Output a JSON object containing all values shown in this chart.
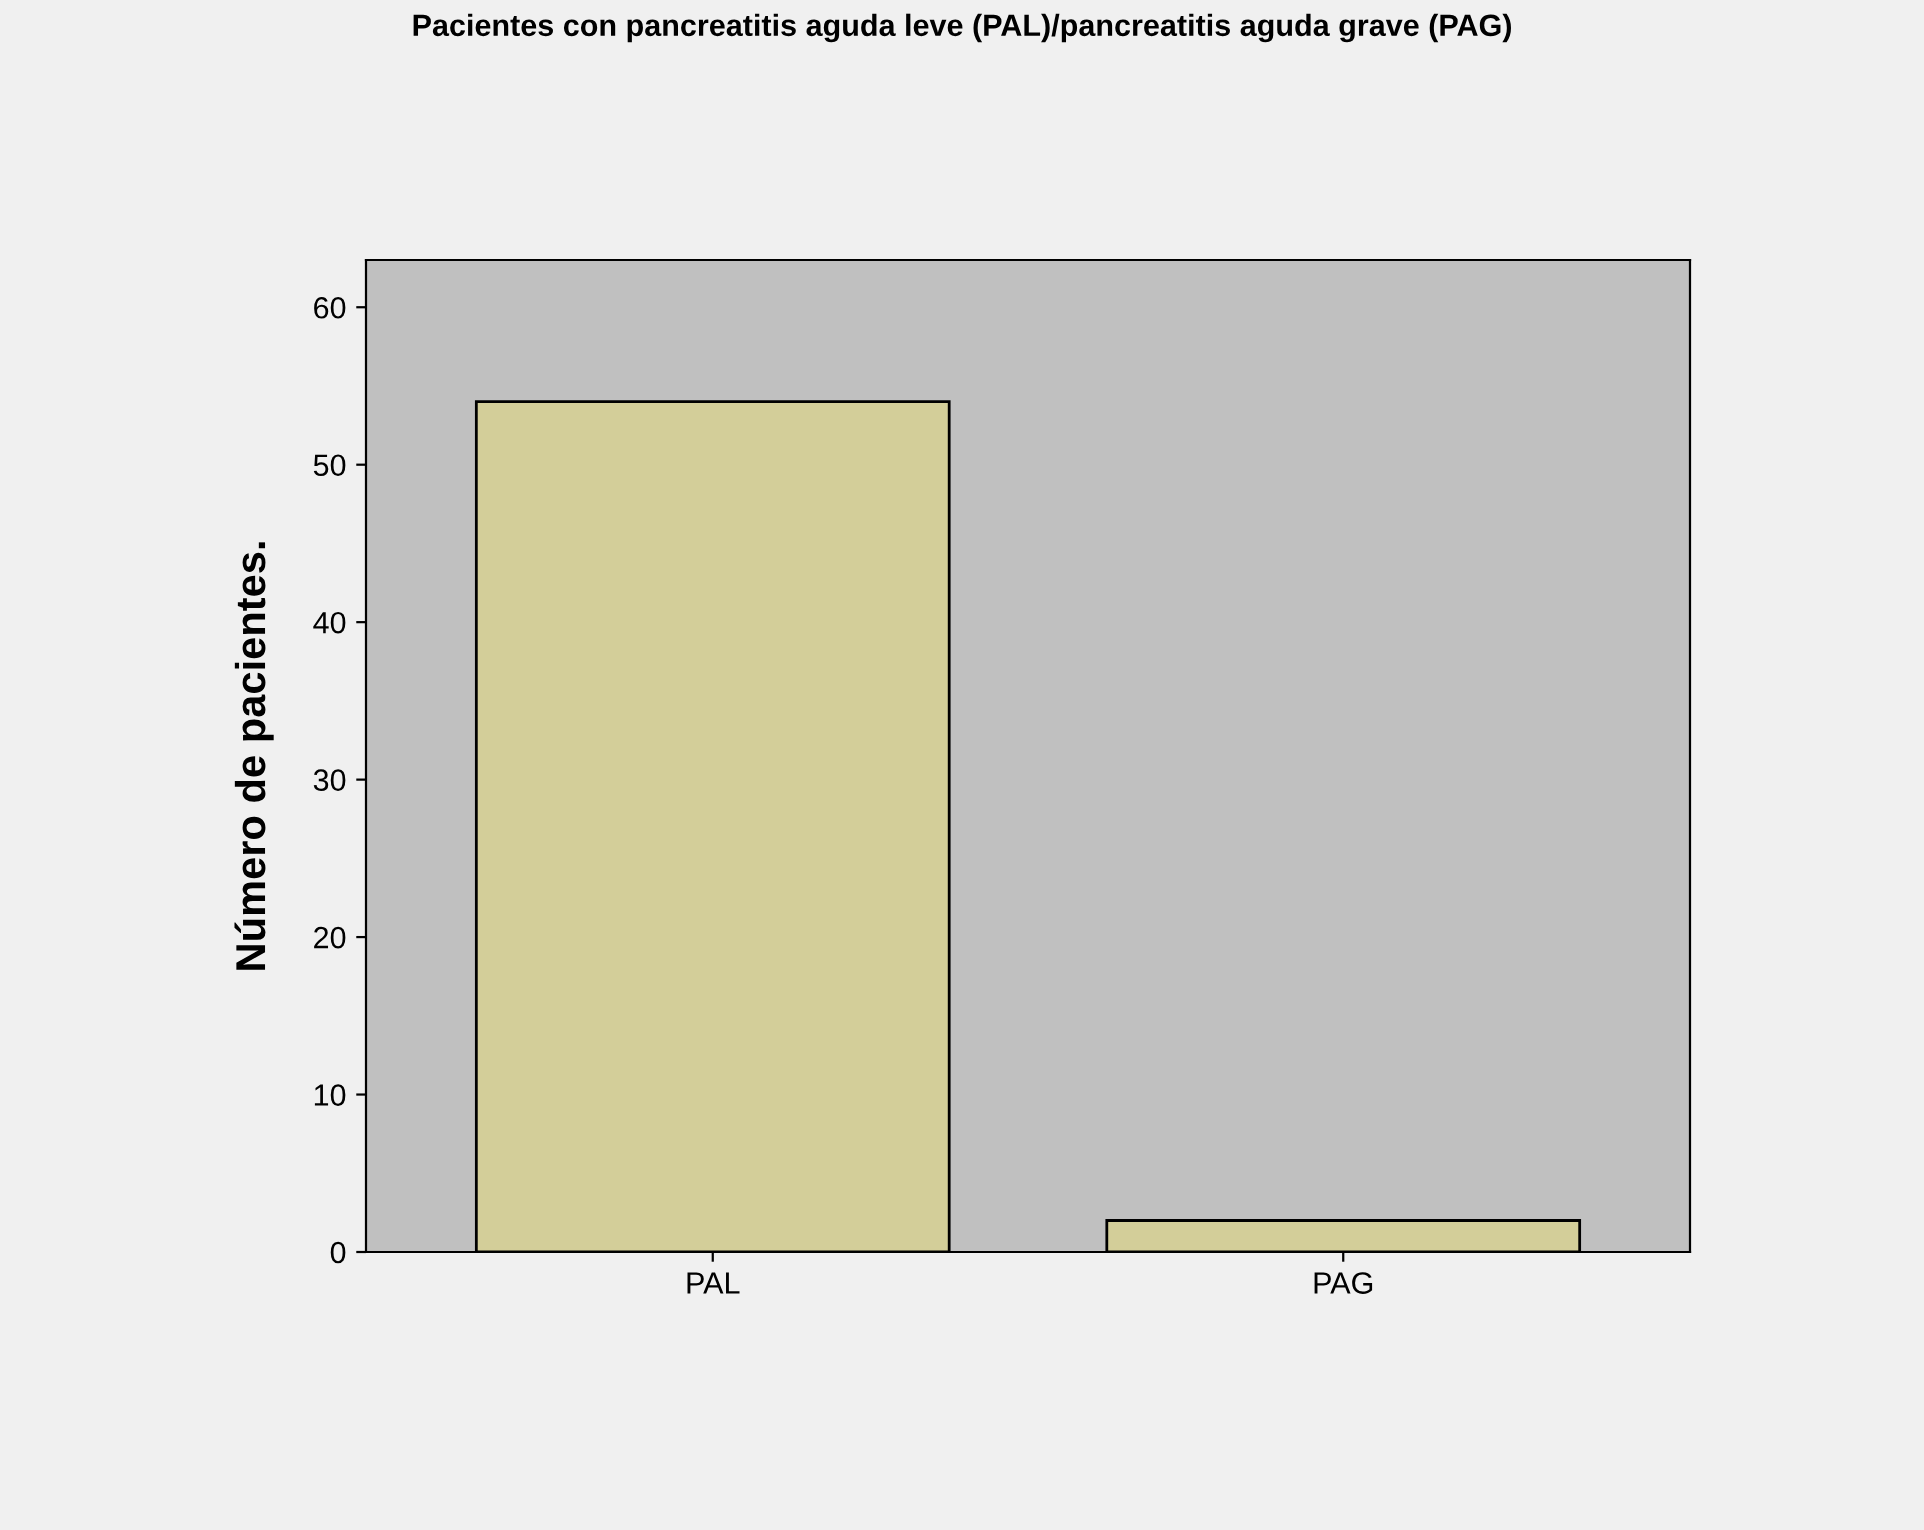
{
  "chart_data": {
    "type": "bar",
    "title": "Pacientes con pancreatitis aguda leve (PAL)/pancreatitis aguda grave (PAG)",
    "ylabel": "Número de pacientes.",
    "categories": [
      "PAL",
      "PAG"
    ],
    "values": [
      54,
      2
    ],
    "color": "#d3ce99",
    "ylim": [
      0,
      63
    ],
    "yticks": [
      0,
      10,
      20,
      30,
      40,
      50,
      60
    ],
    "grid": false
  }
}
